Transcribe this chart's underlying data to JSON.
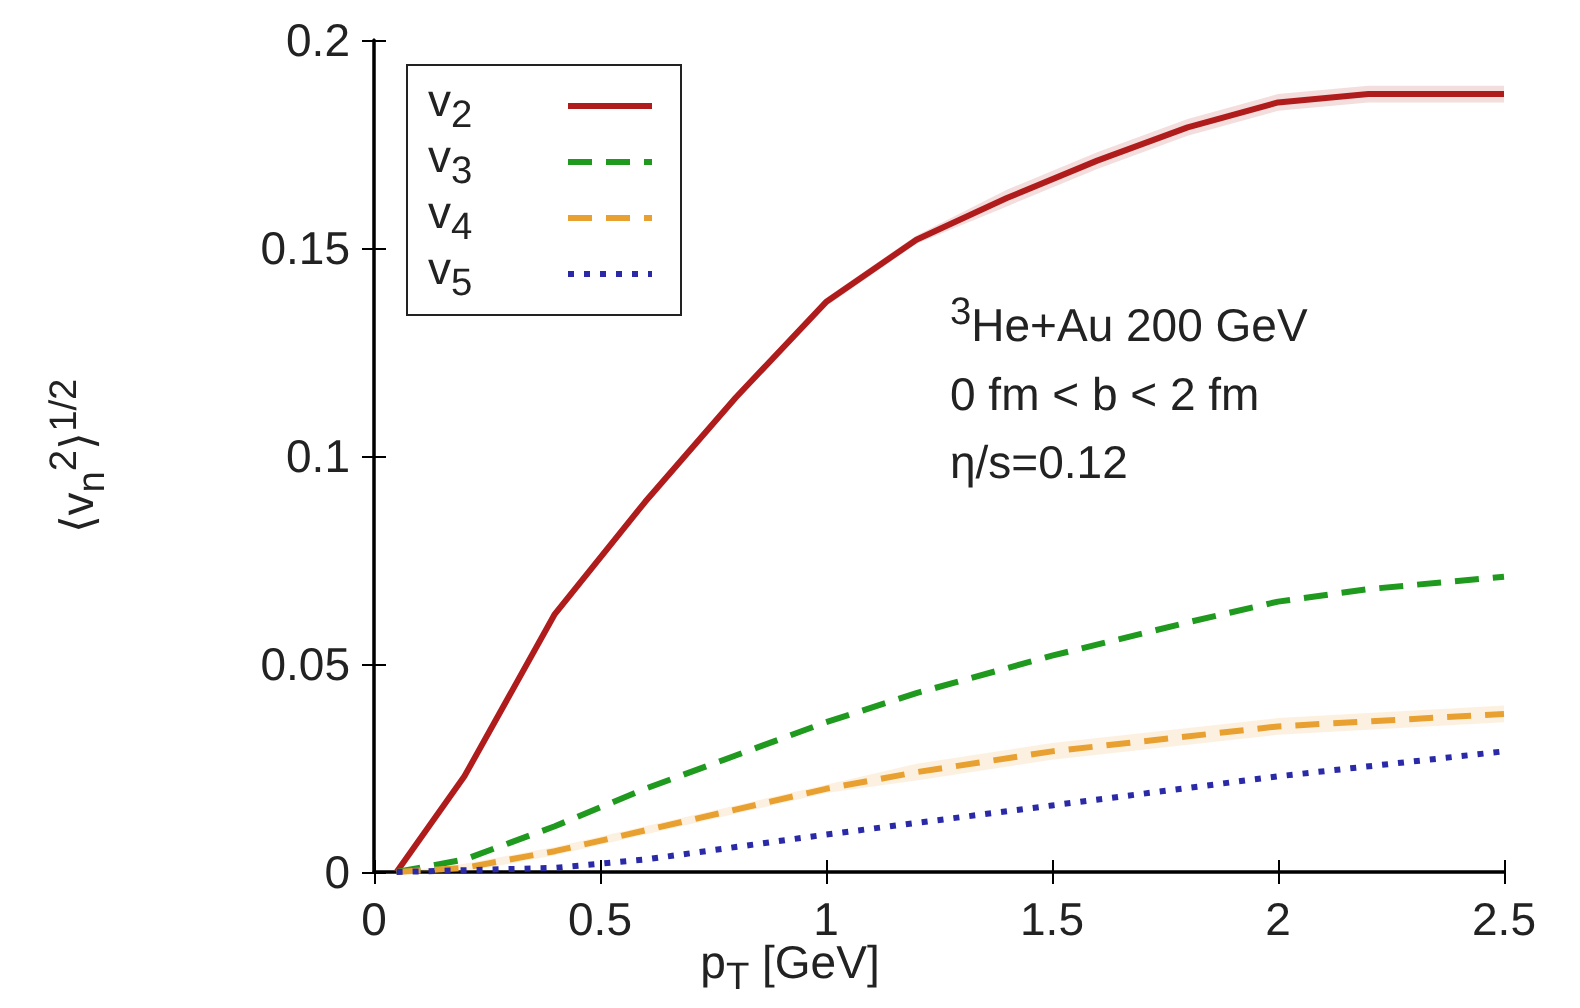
{
  "chart_data": {
    "type": "line",
    "xlabel": "p$_{T}$ [GeV]",
    "ylabel": "⟨v$_{n}$$^{2}$⟩$^{1/2}$",
    "annotations": [
      "$^{3}$He+Au 200 GeV",
      "0 fm < b < 2 fm",
      "η/s=0.12"
    ],
    "xlim": [
      0,
      2.5
    ],
    "xticks": [
      0,
      0.5,
      1,
      1.5,
      2,
      2.5
    ],
    "ylim": [
      0,
      0.2
    ],
    "yticks": [
      0,
      0.05,
      0.1,
      0.15,
      0.2
    ],
    "grid": false,
    "legend": "top left",
    "marker": "none",
    "series": [
      {
        "name": "v$_{2}$",
        "color": "#b01c1c",
        "line_style": "solid",
        "x": [
          0.05,
          0.2,
          0.4,
          0.6,
          0.8,
          1.0,
          1.2,
          1.4,
          1.6,
          1.8,
          2.0,
          2.2,
          2.5
        ],
        "values": [
          0.0,
          0.023,
          0.062,
          0.089,
          0.114,
          0.137,
          0.152,
          0.162,
          0.171,
          0.179,
          0.185,
          0.187,
          0.187
        ],
        "lower": [
          0.0,
          0.022,
          0.061,
          0.088,
          0.113,
          0.136,
          0.151,
          0.16,
          0.169,
          0.177,
          0.183,
          0.185,
          0.185
        ],
        "upper": [
          0.001,
          0.024,
          0.063,
          0.09,
          0.115,
          0.138,
          0.153,
          0.164,
          0.173,
          0.181,
          0.187,
          0.189,
          0.189
        ]
      },
      {
        "name": "v$_{3}$",
        "color": "#1f9a1f",
        "line_style": "dashed",
        "x": [
          0.05,
          0.2,
          0.4,
          0.6,
          0.8,
          1.0,
          1.2,
          1.5,
          1.8,
          2.0,
          2.2,
          2.5
        ],
        "values": [
          0.0,
          0.003,
          0.011,
          0.02,
          0.028,
          0.036,
          0.043,
          0.052,
          0.06,
          0.065,
          0.068,
          0.071
        ]
      },
      {
        "name": "v$_{4}$",
        "color": "#e8a030",
        "line_style": "dashed",
        "x": [
          0.05,
          0.2,
          0.4,
          0.6,
          0.8,
          1.0,
          1.2,
          1.5,
          2.0,
          2.5
        ],
        "values": [
          0.0,
          0.001,
          0.005,
          0.01,
          0.015,
          0.02,
          0.024,
          0.029,
          0.035,
          0.038
        ],
        "lower": [
          0.0,
          0.0,
          0.004,
          0.009,
          0.014,
          0.019,
          0.022,
          0.027,
          0.033,
          0.036
        ],
        "upper": [
          0.0,
          0.002,
          0.006,
          0.011,
          0.016,
          0.021,
          0.026,
          0.031,
          0.037,
          0.04
        ]
      },
      {
        "name": "v$_{5}$",
        "color": "#2a2aa8",
        "line_style": "dotted",
        "x": [
          0.05,
          0.4,
          0.6,
          0.8,
          1.0,
          1.5,
          2.0,
          2.5
        ],
        "values": [
          0.0,
          0.001,
          0.003,
          0.006,
          0.009,
          0.016,
          0.023,
          0.029
        ]
      }
    ]
  }
}
